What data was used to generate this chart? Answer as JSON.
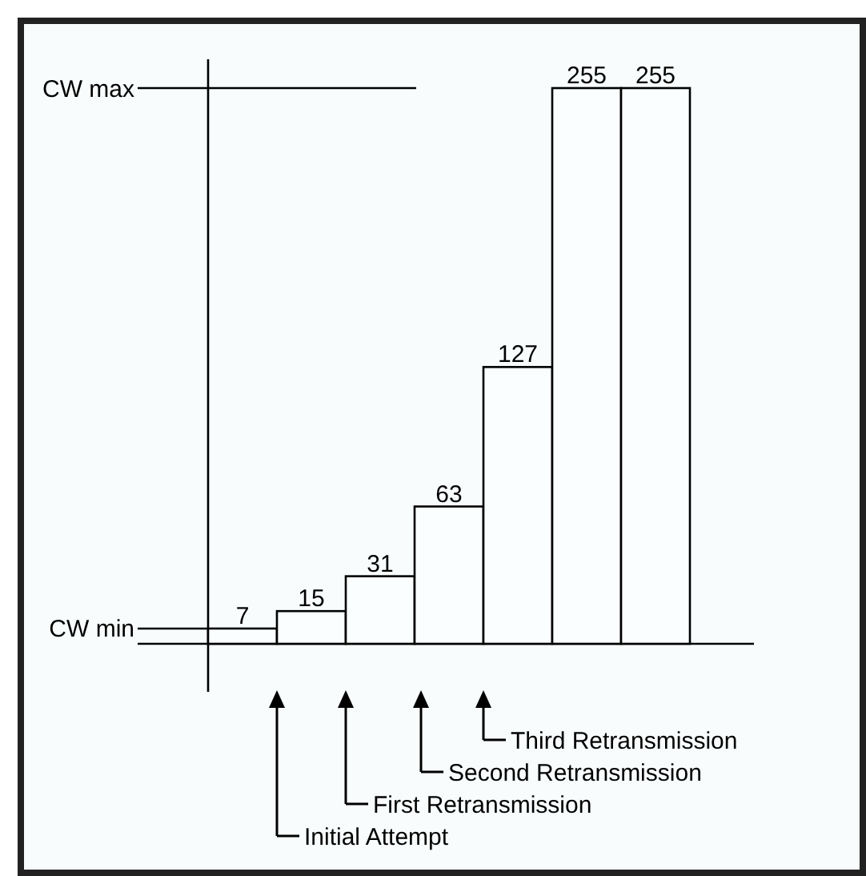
{
  "chart_data": {
    "type": "bar",
    "categories": [
      null,
      null,
      null,
      null,
      null,
      null,
      null
    ],
    "values": [
      7,
      15,
      31,
      63,
      127,
      255,
      255
    ],
    "color": "#fafefe",
    "data_labels": true,
    "ref_lines": [
      {
        "axis": "y",
        "value": 7,
        "label": "CW min"
      },
      {
        "axis": "y",
        "value": 255,
        "label": "CW max"
      }
    ],
    "annotations": [
      "Initial Attempt",
      "First Retransmission",
      "Second Retransmission",
      "Third Retransmission"
    ]
  }
}
